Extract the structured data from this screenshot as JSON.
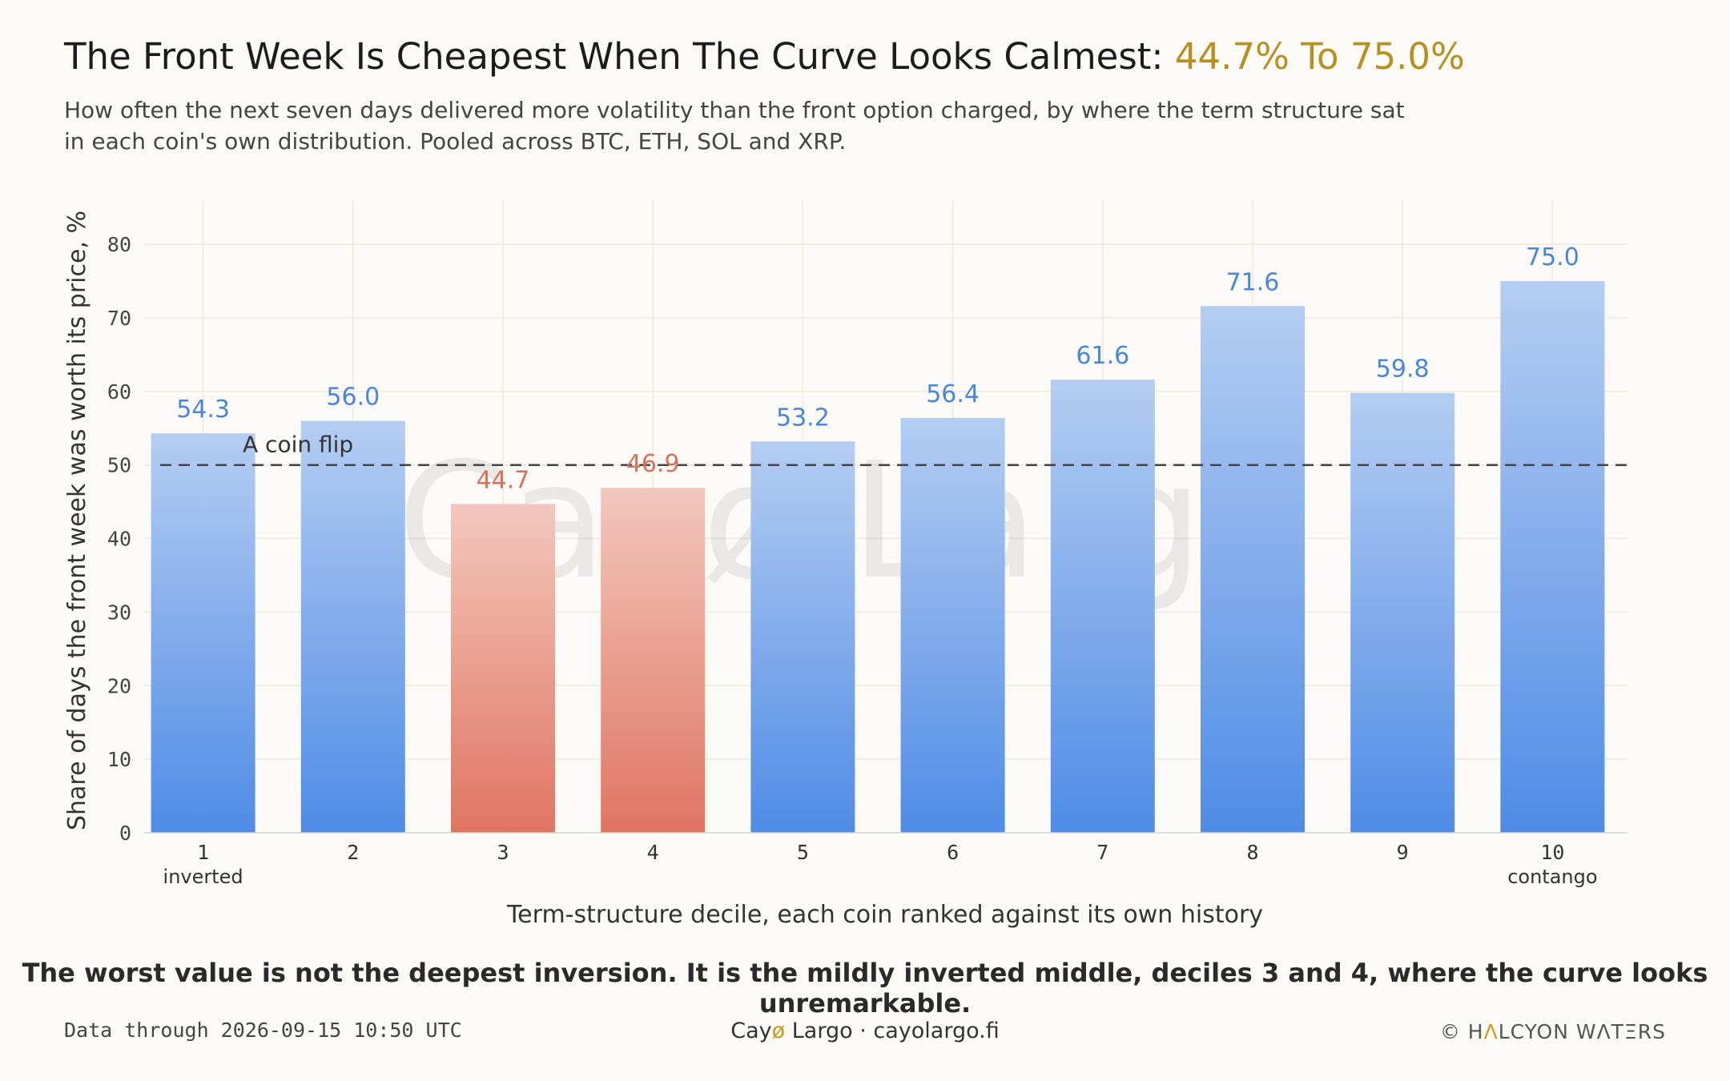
{
  "title_main": "The Front Week Is Cheapest When The Curve Looks Calmest: ",
  "title_highlight": "44.7% To 75.0%",
  "subtitle": "How often the next seven days delivered more volatility than the front option charged, by where the term structure sat in each coin's own distribution. Pooled across BTC, ETH, SOL and XRP.",
  "takeaway": "The worst value is not the deepest inversion. It is the mildly inverted middle, deciles 3 and 4, where the curve looks unremarkable.",
  "footer": {
    "data_through": "Data through 2026-09-15 10:50 UTC",
    "brand_prefix": "Cay",
    "brand_accent": "ø",
    "brand_suffix": " Largo",
    "separator": "·",
    "site": "cayolargo.fi",
    "copyright_prefix": "© H",
    "copyright_accent": "Λ",
    "copyright_suffix": "LCYON WΛTΞRS"
  },
  "watermark": "Cayø Largo",
  "colors": {
    "above_top": "#b4cdf2",
    "above_bottom": "#4f8ce6",
    "below_top": "#f3c7bd",
    "below_bottom": "#e07561",
    "above_label": "#4a86d8",
    "below_label": "#d9705c",
    "title_highlight": "#b8901f"
  },
  "chart_data": {
    "type": "bar",
    "categories": [
      "1",
      "2",
      "3",
      "4",
      "5",
      "6",
      "7",
      "8",
      "9",
      "10"
    ],
    "category_sublabels": [
      "inverted",
      "",
      "",
      "",
      "",
      "",
      "",
      "",
      "",
      "contango"
    ],
    "values": [
      54.3,
      56.0,
      44.7,
      46.9,
      53.2,
      56.4,
      61.6,
      71.6,
      59.8,
      75.0
    ],
    "xlabel": "Term-structure decile, each coin ranked against its own history",
    "ylabel": "Share of days the front week was worth its price, %",
    "ylim": [
      0,
      86
    ],
    "yticks": [
      0,
      10,
      20,
      30,
      40,
      50,
      60,
      70,
      80
    ],
    "reference_line": {
      "value": 50,
      "label": "A coin flip",
      "style": "dashed"
    },
    "grid": true
  }
}
